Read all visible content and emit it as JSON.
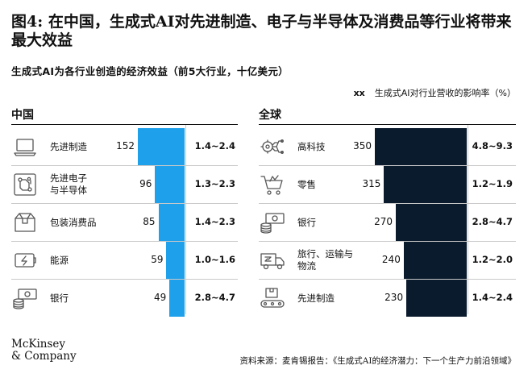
{
  "title": "图4: 在中国，生成式AI对先进制造、电子与半导体及消费品等行业将带来最大效益",
  "subtitle": "生成式AI为各行业创造的经济效益（前5大行业，十亿美元）",
  "legend": {
    "marker": "xx",
    "label": "生成式AI对行业营收的影响率（%）"
  },
  "colors": {
    "china_bar": "#1ea0ea",
    "global_bar": "#0a1b2e"
  },
  "brand": {
    "line1": "McKinsey",
    "line2": "& Company"
  },
  "source": "资料来源：麦肯锡报告：《生成式AI的经济潜力：下一个生产力前沿领域》",
  "panels": {
    "china": {
      "heading": "中国"
    },
    "global": {
      "heading": "全球"
    }
  },
  "chart_data": [
    {
      "type": "bar",
      "title": "中国",
      "categories": [
        "先进制造",
        "先进电子\n与半导体",
        "包装消费品",
        "能源",
        "银行"
      ],
      "icons": [
        "laptop-icon",
        "circuit-icon",
        "box-icon",
        "battery-icon",
        "cash-icon"
      ],
      "values": [
        152,
        96,
        85,
        59,
        49
      ],
      "impact_range": [
        "1.4~2.4",
        "1.3~2.3",
        "1.4~2.3",
        "1.0~1.6",
        "2.8~4.7"
      ],
      "xlim": [
        0,
        152
      ]
    },
    {
      "type": "bar",
      "title": "全球",
      "categories": [
        "高科技",
        "零售",
        "银行",
        "旅行、运输与\n物流",
        "先进制造"
      ],
      "icons": [
        "tech-chip-icon",
        "cart-icon",
        "cash-icon",
        "truck-icon",
        "conveyor-icon"
      ],
      "values": [
        350,
        315,
        270,
        240,
        230
      ],
      "impact_range": [
        "4.8~9.3",
        "1.2~1.9",
        "2.8~4.7",
        "1.2~2.0",
        "1.4~2.4"
      ],
      "xlim": [
        0,
        350
      ]
    }
  ]
}
